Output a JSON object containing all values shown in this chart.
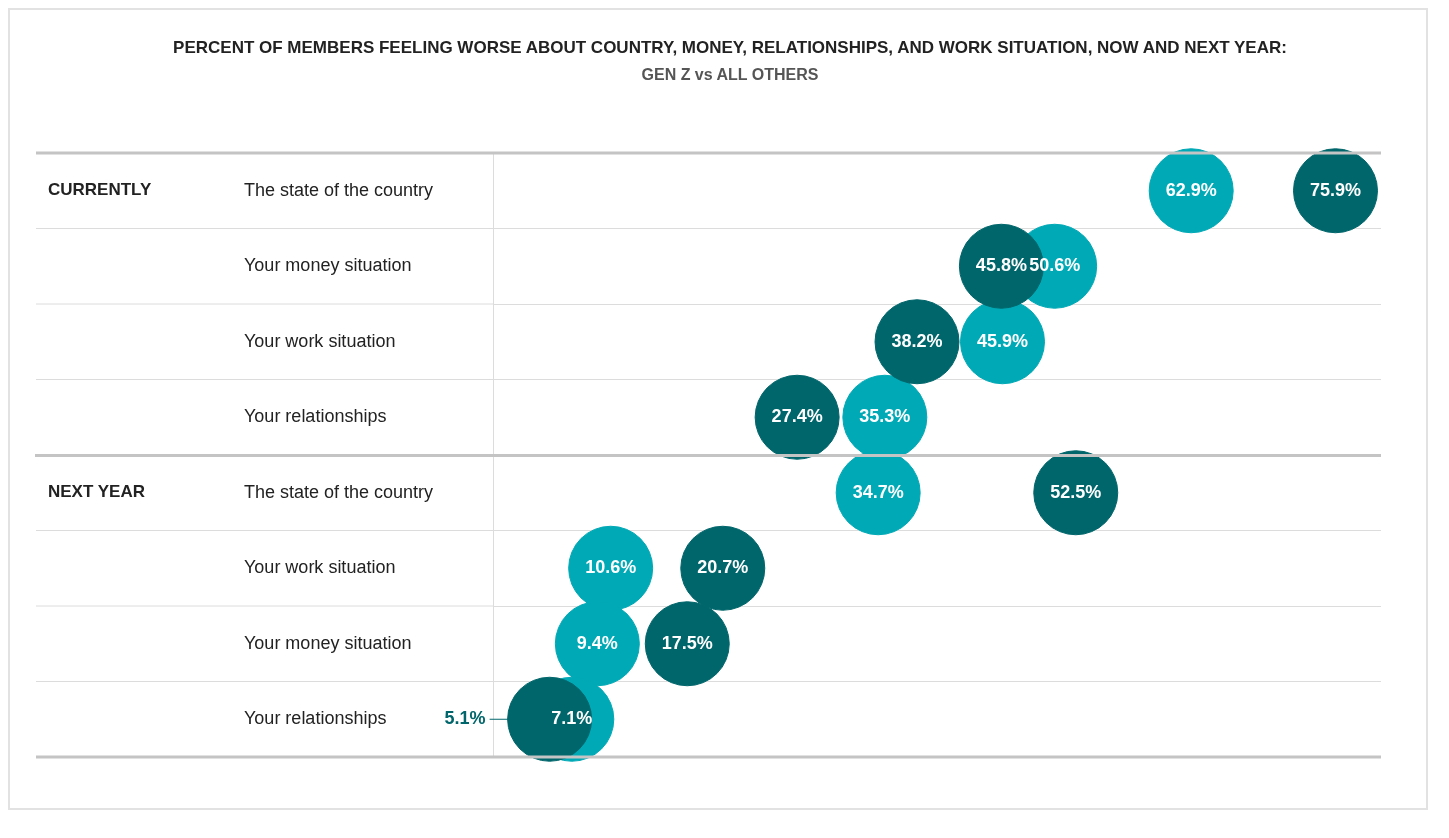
{
  "chart_data": {
    "type": "scatter",
    "orientation": "horizontal",
    "title": "PERCENT OF MEMBERS FEELING WORSE ABOUT COUNTRY, MONEY, RELATIONSHIPS, AND WORK SITUATION, NOW AND NEXT YEAR:",
    "subtitle": "GEN Z vs ALL OTHERS",
    "categories": [
      "The state of the country",
      "Your money situation",
      "Your work situation",
      "Your relationships",
      "The state of the country",
      "Your work situation",
      "Your money situation",
      "Your relationships"
    ],
    "series": [
      {
        "color": "#00666b",
        "values": [
          75.9,
          45.8,
          38.2,
          27.4,
          52.5,
          20.7,
          17.5,
          5.1
        ],
        "value_labels": [
          "75.9%",
          "45.8%",
          "38.2%",
          "27.4%",
          "52.5%",
          "20.7%",
          "17.5%",
          "5.1%"
        ]
      },
      {
        "color": "#00a9b6",
        "values": [
          62.9,
          50.6,
          45.9,
          35.3,
          34.7,
          10.6,
          9.4,
          7.1
        ],
        "value_labels": [
          "62.9%",
          "50.6%",
          "45.9%",
          "35.3%",
          "34.7%",
          "10.6%",
          "9.4%",
          "7.1%"
        ]
      }
    ],
    "tick_labels": "y",
    "grid": "y",
    "marker": "circle",
    "annotations": [
      "CURRENTLY",
      "NEXT YEAR"
    ]
  }
}
